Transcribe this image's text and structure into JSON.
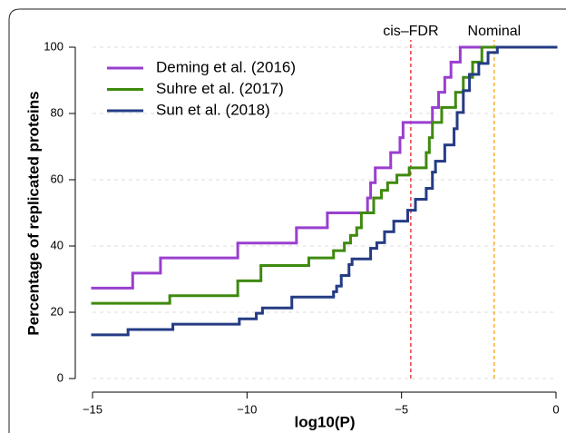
{
  "chart_data": {
    "type": "step",
    "xlabel": "log10(P)",
    "ylabel": "Percentage of replicated proteins",
    "xlim": [
      -15,
      0
    ],
    "ylim": [
      0,
      100
    ],
    "xticks": [
      {
        "value": -15,
        "label": "−15"
      },
      {
        "value": -10,
        "label": "−10"
      },
      {
        "value": -5,
        "label": "−5"
      },
      0
    ],
    "yticks": [
      0,
      20,
      40,
      60,
      80,
      100
    ],
    "grid": true,
    "legend": "top-left",
    "annotations": [
      {
        "text": "cis–FDR",
        "x": -4.7,
        "color": "#e8202a"
      },
      {
        "text": "Nominal",
        "x": -2,
        "color": "#f5a20a"
      }
    ],
    "series": [
      {
        "name": "Deming et al. (2016)",
        "color": "#9a3fcf",
        "x": [
          -15,
          -13.7,
          -12.8,
          -10.3,
          -8.4,
          -7.4,
          -6.1,
          -6.0,
          -5.85,
          -5.35,
          -5.05,
          -4.95,
          -4.0,
          -3.8,
          -3.6,
          -3.4,
          -3.1,
          0
        ],
        "values": [
          27.3,
          31.8,
          36.4,
          40.9,
          45.5,
          50,
          54.5,
          59.1,
          63.6,
          68.2,
          72.7,
          77.3,
          81.8,
          86.4,
          90.9,
          95.5,
          100,
          100
        ]
      },
      {
        "name": "Suhre et al. (2017)",
        "color": "#3f8a0f",
        "x": [
          -15,
          -12.5,
          -10.3,
          -9.55,
          -8.0,
          -7.2,
          -6.85,
          -6.65,
          -6.45,
          -6.3,
          -5.9,
          -5.65,
          -5.45,
          -5.15,
          -4.75,
          -4.2,
          -4.1,
          -4.0,
          -3.7,
          -3.25,
          -3.0,
          -2.7,
          -2.4,
          0
        ],
        "values": [
          22.7,
          25,
          29.5,
          34.1,
          36.4,
          38.6,
          40.9,
          43.2,
          45.5,
          50,
          54.5,
          56.8,
          59.1,
          61.4,
          63.6,
          68.2,
          72.7,
          77.3,
          81.8,
          86.4,
          90.9,
          95.5,
          100,
          100
        ]
      },
      {
        "name": "Sun et al. (2018)",
        "color": "#253c85",
        "x": [
          -15,
          -13.85,
          -12.4,
          -10.25,
          -9.7,
          -9.5,
          -8.55,
          -7.2,
          -7.1,
          -6.95,
          -6.7,
          -6.6,
          -6.0,
          -5.8,
          -5.55,
          -5.25,
          -4.8,
          -4.55,
          -4.2,
          -4.0,
          -3.9,
          -3.6,
          -3.3,
          -3.2,
          -3.0,
          -2.8,
          -2.5,
          -2.2,
          -1.9,
          0
        ],
        "values": [
          13.2,
          14.8,
          16.4,
          18,
          19.7,
          21.3,
          24.6,
          26.2,
          27.9,
          31.1,
          34.4,
          36.1,
          39.3,
          41,
          44.3,
          47.5,
          50.8,
          54.1,
          57.4,
          62.3,
          65.6,
          70.5,
          75.4,
          80.3,
          86.9,
          91.8,
          95.1,
          98.4,
          100,
          100
        ]
      }
    ]
  }
}
